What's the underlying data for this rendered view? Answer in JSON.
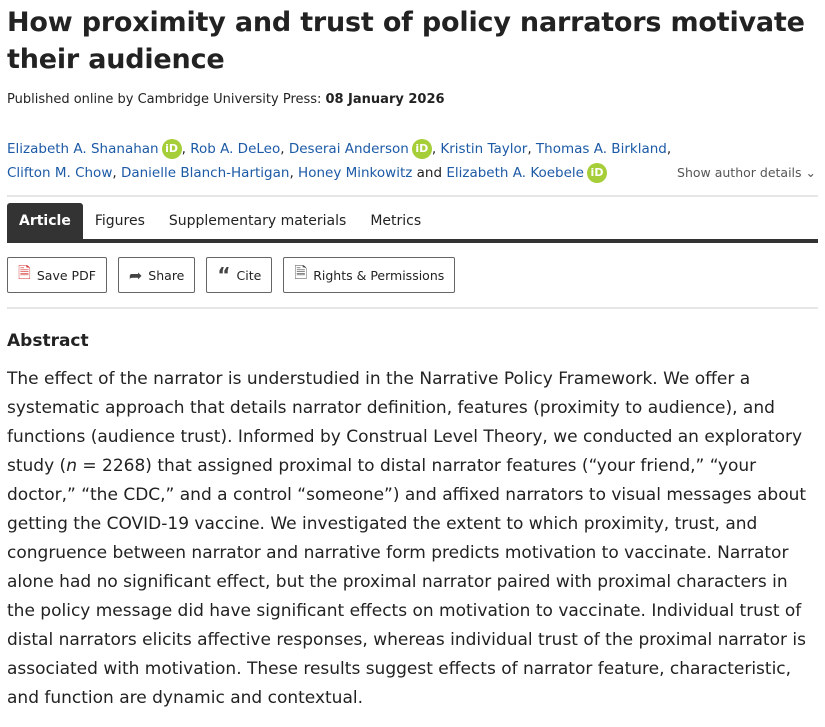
{
  "title": "How proximity and trust of policy narrators motivate their audience",
  "published": {
    "label": "Published online by Cambridge University Press:",
    "date": "08 January 2026"
  },
  "authors": [
    {
      "name": "Elizabeth A. Shanahan",
      "orcid": true
    },
    {
      "name": "Rob A. DeLeo",
      "orcid": false
    },
    {
      "name": "Deserai Anderson",
      "orcid": true
    },
    {
      "name": "Kristin Taylor",
      "orcid": false
    },
    {
      "name": "Thomas A. Birkland",
      "orcid": false
    },
    {
      "name": "Clifton M. Chow",
      "orcid": false
    },
    {
      "name": "Danielle Blanch-Hartigan",
      "orcid": false
    },
    {
      "name": "Honey Minkowitz",
      "orcid": false
    },
    {
      "name": "Elizabeth A. Koebele",
      "orcid": true
    }
  ],
  "and": "and",
  "orcid_label": "iD",
  "show_author_details": "Show author details",
  "tabs": [
    "Article",
    "Figures",
    "Supplementary materials",
    "Metrics"
  ],
  "buttons": {
    "save_pdf": "Save PDF",
    "share": "Share",
    "cite": "Cite",
    "rights": "Rights & Permissions"
  },
  "abstract": {
    "heading": "Abstract",
    "before_n": "The effect of the narrator is understudied in the Narrative Policy Framework. We offer a systematic approach that details narrator definition, features (proximity to audience), and functions (audience trust). Informed by Construal Level Theory, we conducted an exploratory study (",
    "n": "n",
    "after_n": " = 2268) that assigned proximal to distal narrator features (“your friend,” “your doctor,” “the CDC,” and a control “someone”) and affixed narrators to visual messages about getting the COVID-19 vaccine. We investigated the extent to which proximity, trust, and congruence between narrator and narrative form predicts motivation to vaccinate. Narrator alone had no significant effect, but the proximal narrator paired with proximal characters in the policy message did have significant effects on motivation to vaccinate. Individual trust of distal narrators elicits affective responses, whereas individual trust of the proximal narrator is associated with motivation. These results suggest effects of narrator feature, characteristic, and function are dynamic and contextual."
  },
  "colors": {
    "link": "#1c5aa6",
    "orcid": "#a6ce39",
    "tab_active": "#333333"
  }
}
